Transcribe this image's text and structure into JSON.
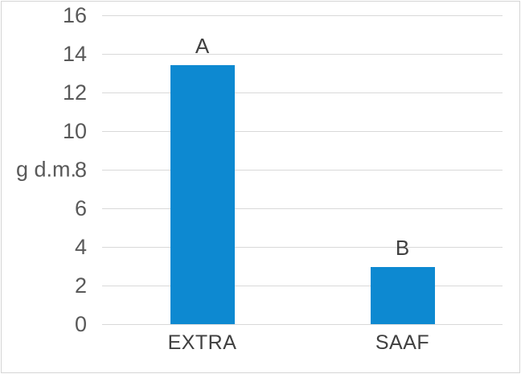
{
  "chart_data": {
    "type": "bar",
    "categories": [
      "EXTRA",
      "SAAF"
    ],
    "values": [
      13.4,
      2.95
    ],
    "bar_labels": [
      "A",
      "B"
    ],
    "title": "",
    "xlabel": "",
    "ylabel": "g d.m.",
    "ylim": [
      0,
      16
    ],
    "ytick_step": 2,
    "grid": true,
    "legend": "none",
    "bar_color": "#0d89d1",
    "gridline_color": "#d9d9d9",
    "tick_text_color": "#595959",
    "label_text_color": "#404040",
    "border_color": "#d5d5d5"
  }
}
